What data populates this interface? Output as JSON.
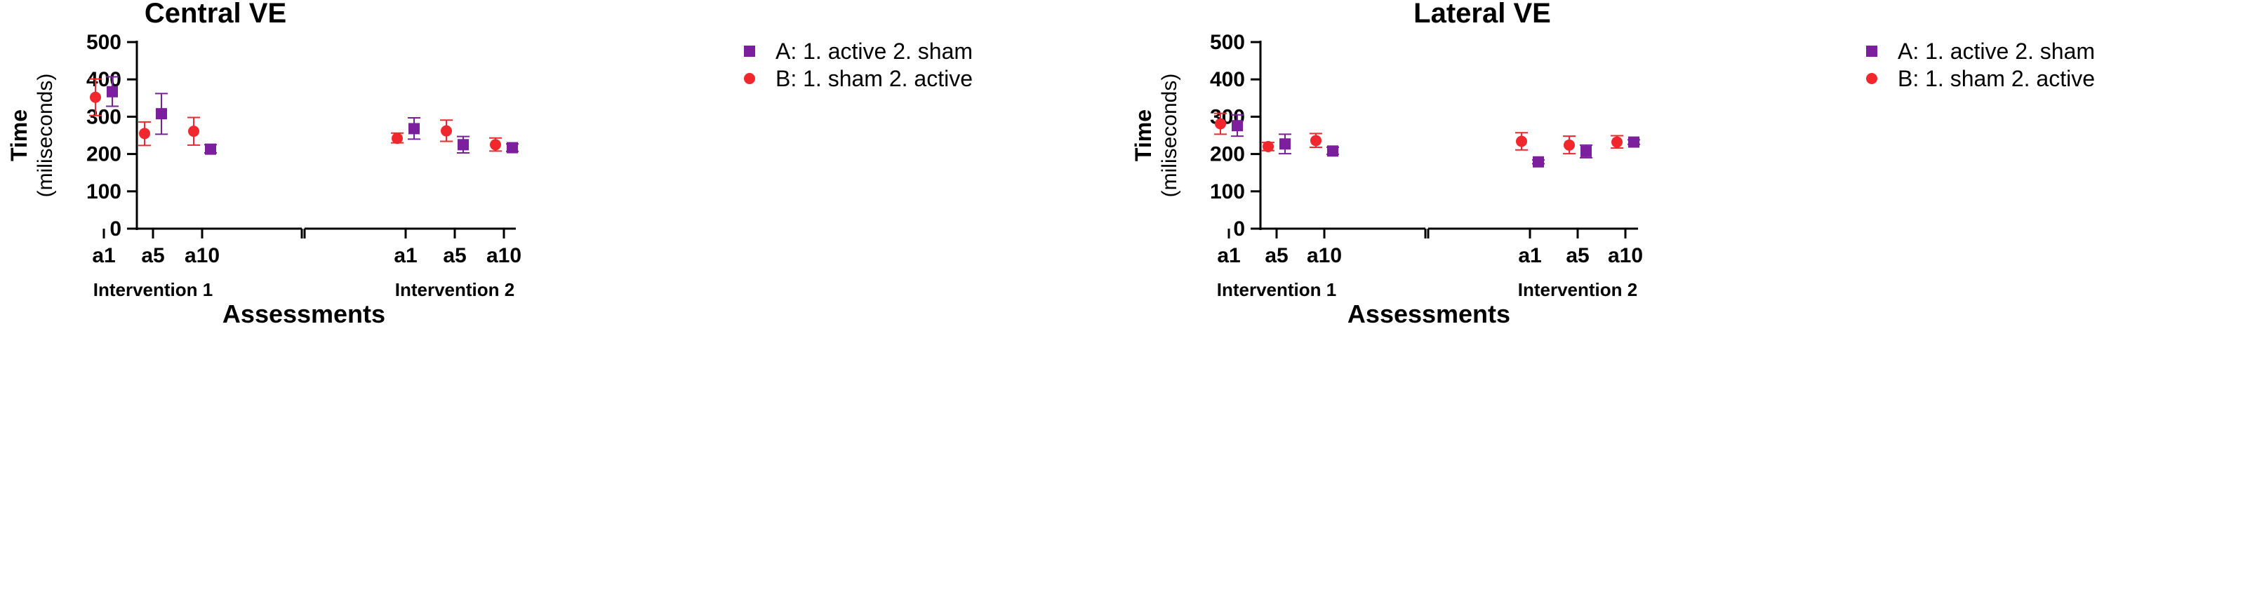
{
  "chart_data": [
    {
      "type": "scatter",
      "title": "Central VE",
      "xlabel": "Assessments",
      "ylabel": "Time",
      "ylabel_unit": "(miliseconds)",
      "ylim": [
        0,
        500
      ],
      "yticks": [
        "0",
        "100",
        "200",
        "300",
        "400",
        "500"
      ],
      "groups": [
        {
          "label": "Intervention 1",
          "categories": [
            "a1",
            "a5",
            "a10"
          ]
        },
        {
          "label": "Intervention 2",
          "categories": [
            "a1",
            "a5",
            "a10"
          ]
        }
      ],
      "legend_position": "right",
      "series": [
        {
          "name": "A: 1. active 2. sham",
          "color": "#7B1F9E",
          "marker": "square",
          "values": [
            367,
            308,
            213,
            268,
            225,
            217
          ],
          "err_low": [
            328,
            253,
            203,
            240,
            203,
            207
          ],
          "err_high": [
            407,
            362,
            225,
            297,
            247,
            227
          ]
        },
        {
          "name": "B: 1. sham 2. active",
          "color": "#F0282D",
          "marker": "circle",
          "values": [
            352,
            255,
            261,
            242,
            262,
            225
          ],
          "err_low": [
            303,
            223,
            224,
            230,
            234,
            208
          ],
          "err_high": [
            401,
            286,
            298,
            256,
            291,
            243
          ]
        }
      ]
    },
    {
      "type": "scatter",
      "title": "Lateral VE",
      "xlabel": "Assessments",
      "ylabel": "Time",
      "ylabel_unit": "(miliseconds)",
      "ylim": [
        0,
        500
      ],
      "yticks": [
        "0",
        "100",
        "200",
        "300",
        "400",
        "500"
      ],
      "groups": [
        {
          "label": "Intervention 1",
          "categories": [
            "a1",
            "a5",
            "a10"
          ]
        },
        {
          "label": "Intervention 2",
          "categories": [
            "a1",
            "a5",
            "a10"
          ]
        }
      ],
      "legend_position": "right",
      "series": [
        {
          "name": "A: 1. active 2. sham",
          "color": "#7B1F9E",
          "marker": "square",
          "values": [
            276,
            227,
            208,
            179,
            207,
            232
          ],
          "err_low": [
            248,
            201,
            199,
            174,
            190,
            226
          ],
          "err_high": [
            305,
            253,
            218,
            184,
            224,
            238
          ]
        },
        {
          "name": "B: 1. sham 2. active",
          "color": "#F0282D",
          "marker": "circle",
          "values": [
            281,
            220,
            236,
            234,
            224,
            232
          ],
          "err_low": [
            253,
            209,
            218,
            211,
            201,
            216
          ],
          "err_high": [
            309,
            231,
            255,
            257,
            248,
            249
          ]
        }
      ]
    }
  ]
}
